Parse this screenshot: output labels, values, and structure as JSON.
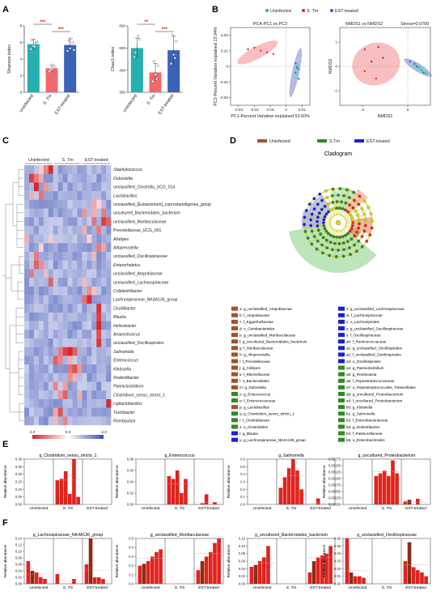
{
  "panels": {
    "A": "A",
    "B": "B",
    "C": "C",
    "D": "D",
    "E": "E",
    "F": "F"
  },
  "groups": [
    "Uninfected",
    "S. Tm",
    "EST-treated"
  ],
  "colors": {
    "uninfected": "#25b0b0",
    "stm": "#f06a6a",
    "est": "#3a63b8",
    "bar_red": "#e0231e",
    "bar_dark": "#8c2b14",
    "clado_uninf": "#a0522d",
    "clado_stm": "#2e8b22",
    "clado_est": "#1f1fd0",
    "heat_hi": "#d6262b",
    "heat_lo": "#3a4fb5"
  },
  "panelA": {
    "charts": [
      {
        "type": "bar",
        "ylabel": "Shannon index",
        "categories": [
          "Uninfected",
          "S. Tm",
          "EST-treated"
        ],
        "values": [
          5.8,
          2.9,
          5.7
        ],
        "errors": [
          0.6,
          0.4,
          0.8
        ],
        "points": [
          [
            5.2,
            5.6,
            6.0,
            6.3,
            5.5,
            6.1
          ],
          [
            2.5,
            2.8,
            3.1,
            2.7,
            3.3
          ],
          [
            5.0,
            5.3,
            6.0,
            6.2,
            6.5,
            5.1
          ]
        ],
        "ylim": [
          0,
          8
        ],
        "yticks": [
          "0",
          "2",
          "4",
          "6",
          "8"
        ],
        "sig": [
          {
            "from": 0,
            "to": 1,
            "label": "***"
          },
          {
            "from": 1,
            "to": 2,
            "label": "***"
          }
        ]
      },
      {
        "type": "bar",
        "ylabel": "Chao1 index",
        "categories": [
          "Uninfected",
          "S. Tm",
          "EST-treated"
        ],
        "values": [
          500,
          390,
          490
        ],
        "errors": [
          45,
          40,
          65
        ],
        "points": [
          [
            460,
            510,
            540,
            480,
            555
          ],
          [
            350,
            380,
            420,
            440,
            360
          ],
          [
            430,
            470,
            530,
            560,
            455
          ]
        ],
        "ylim": [
          300,
          600
        ],
        "yticks": [
          "300",
          "400",
          "500",
          "600"
        ],
        "sig": [
          {
            "from": 0,
            "to": 1,
            "label": "**"
          },
          {
            "from": 1,
            "to": 2,
            "label": "***"
          }
        ]
      }
    ]
  },
  "panelB": {
    "legend": [
      "Uninfected",
      "S. Tm",
      "EST-treated"
    ],
    "pca": {
      "title": "PCA-PC1 vs PC2",
      "xlabel": "PC1-Percent Variation explained 53.60%",
      "ylabel": "PC2-Percent Variation explained 13.94%",
      "xticks": [
        "-0.03",
        "-0.02",
        "-0.01",
        "0",
        "0.01"
      ],
      "yticks": [
        "-0.02",
        "-0.01",
        "0",
        "0.01",
        "0.02"
      ]
    },
    "nmds": {
      "title": "NMDS1 vs NMDS2",
      "stress": "Stress=0.0700",
      "xlabel": "NMDS1",
      "ylabel": "NMDS2",
      "xticks": [
        "-2",
        "0"
      ],
      "yticks": [
        "-1",
        "0",
        "1"
      ]
    }
  },
  "panelC": {
    "column_groups": [
      "Uninfected",
      "S. Tm",
      "EST-treated"
    ],
    "rows": [
      "Staphylococcus",
      "Dubosiella",
      "unclassified_Clostridia_UCG_014",
      "Lactobacillus",
      "unclassified_[Eubacterium]_coprostanoligenes_group",
      "uncultured_Bacteroidales_bacterium",
      "unclassified_Muribaculaceae",
      "Prevotellaceae_UCG_001",
      "Alistipes",
      "Alloprevotella",
      "unclassified_Oscillospiraceae",
      "Enterorhabdus",
      "unclassified_Atopobiaceae",
      "unclassified_Lachnospiraceae",
      "Colidextribacter",
      "Lachnospiraceae_NK4A136_group",
      "Oscillibacter",
      "Blautia",
      "Helicobacter",
      "Anaerotruncus",
      "unclassified_Oscillospirales",
      "Salmonella",
      "Enterococcus",
      "Klebsiella",
      "Rodentibacter",
      "Paeniclostridium",
      "Clostridium_sensu_stricto_1",
      "Ligilactobacillus",
      "Turicibacter",
      "Romboutsia"
    ],
    "italic_rows": [
      "Staphylococcus",
      "Dubosiella",
      "Lactobacillus",
      "Alistipes",
      "Alloprevotella",
      "Enterorhabdus",
      "Colidextribacter",
      "Oscillibacter",
      "Blautia",
      "Helicobacter",
      "Anaerotruncus",
      "Salmonella",
      "Enterococcus",
      "Klebsiella",
      "Rodentibacter",
      "Paeniclostridium",
      "Ligilactobacillus",
      "Turicibacter",
      "Romboutsia"
    ],
    "scale_labels": [
      "2.0",
      "0.0",
      "-2.0"
    ]
  },
  "panelD": {
    "legend": [
      "Uninfected",
      "S.Tm",
      "EST-treated"
    ],
    "title": "Cladogram",
    "taxa_left": [
      {
        "k": "a",
        "t": "g_unclassified_Atopobiaceae",
        "c": "u"
      },
      {
        "k": "b",
        "t": "f_Atopobiaceae",
        "c": "u"
      },
      {
        "k": "c",
        "t": "f_Eggerthellaceae",
        "c": "u"
      },
      {
        "k": "d",
        "t": "o_Coriobacteriales",
        "c": "u"
      },
      {
        "k": "e",
        "t": "g_unclassified_Muribaculaceae",
        "c": "u"
      },
      {
        "k": "f",
        "t": "g_uncultured_Bacteroidales_bacterium",
        "c": "u"
      },
      {
        "k": "g",
        "t": "f_Muribaculaceae",
        "c": "u"
      },
      {
        "k": "h",
        "t": "g_Alloprevotella",
        "c": "u"
      },
      {
        "k": "i",
        "t": "f_Prevotellaceae",
        "c": "u"
      },
      {
        "k": "j",
        "t": "g_Alistipes",
        "c": "u"
      },
      {
        "k": "k",
        "t": "f_Rikenellaceae",
        "c": "u"
      },
      {
        "k": "l",
        "t": "o_Bacteroidales",
        "c": "u"
      },
      {
        "k": "m",
        "t": "g_Dubosiella",
        "c": "u"
      },
      {
        "k": "n",
        "t": "g_Enterococcus",
        "c": "s"
      },
      {
        "k": "o",
        "t": "f_Enterococcaceae",
        "c": "s"
      },
      {
        "k": "p",
        "t": "g_Lactobacillus",
        "c": "u"
      },
      {
        "k": "q",
        "t": "g_Clostridium_sensu_stricto_1",
        "c": "s"
      },
      {
        "k": "r",
        "t": "f_Clostridiaceae",
        "c": "s"
      },
      {
        "k": "s",
        "t": "o_Clostridiales",
        "c": "s"
      },
      {
        "k": "t",
        "t": "g_Blautia",
        "c": "e"
      },
      {
        "k": "u",
        "t": "g_Lachnospiraceae_NK4A136_group",
        "c": "e"
      }
    ],
    "taxa_right": [
      {
        "k": "v",
        "t": "g_unclassified_Lachnospiraceae",
        "c": "e"
      },
      {
        "k": "w",
        "t": "f_Lachnospiraceae",
        "c": "e"
      },
      {
        "k": "x",
        "t": "o_Lachnospirales",
        "c": "e"
      },
      {
        "k": "y",
        "t": "g_unclassified_Oscillospiraceae",
        "c": "e"
      },
      {
        "k": "z",
        "t": "f_Oscillospiraceae",
        "c": "e"
      },
      {
        "k": "a0",
        "t": "f_Ruminococcaceae",
        "c": "e"
      },
      {
        "k": "a1",
        "t": "g_unclassified_Oscillospirales",
        "c": "e"
      },
      {
        "k": "a2",
        "t": "f_unclassified_Oscillospirales",
        "c": "e"
      },
      {
        "k": "a3",
        "t": "o_Oscillospirales",
        "c": "e"
      },
      {
        "k": "a4",
        "t": "g_Paeniclostridium",
        "c": "s"
      },
      {
        "k": "a5",
        "t": "g_Romboutsia",
        "c": "s"
      },
      {
        "k": "a6",
        "t": "f_Peptostreptococcaceae",
        "c": "s"
      },
      {
        "k": "a7",
        "t": "o_Peptostreptococcales_Tissierellales",
        "c": "s"
      },
      {
        "k": "a8",
        "t": "g_uncultured_Proteobacterium",
        "c": "s"
      },
      {
        "k": "a9",
        "t": "f_uncultured_Proteobacterium",
        "c": "s"
      },
      {
        "k": "b0",
        "t": "g_Klebsiella",
        "c": "s"
      },
      {
        "k": "b1",
        "t": "g_Salmonella",
        "c": "s"
      },
      {
        "k": "b2",
        "t": "f_Enterobacteriaceae",
        "c": "s"
      },
      {
        "k": "b3",
        "t": "g_Rodentibacter",
        "c": "s"
      },
      {
        "k": "b4",
        "t": "f_Pasteurellaceae",
        "c": "s"
      },
      {
        "k": "b5",
        "t": "o_Enterobacterales",
        "c": "s"
      }
    ]
  },
  "panelE": [
    {
      "title": "g_Clostridium_sensu_stricto_1",
      "yticks": [
        "0.00",
        "0.05",
        "0.10",
        "0.15",
        "0.20",
        "0.25",
        "0.30"
      ],
      "ymax": 0.3,
      "values": [
        0.0,
        0.0,
        0.0,
        0.0,
        0.0,
        0.0,
        0.16,
        0.17,
        0.22,
        0.07,
        0.3,
        0.05,
        0.0,
        0.0,
        0.0,
        0.0,
        0.0,
        0.0
      ]
    },
    {
      "title": "g_Enterococcus",
      "yticks": [
        "0.00",
        "0.02",
        "0.04",
        "0.06",
        "0.08"
      ],
      "ymax": 0.08,
      "values": [
        0.0,
        0.0,
        0.0,
        0.0,
        0.0,
        0.0,
        0.05,
        0.045,
        0.06,
        0.02,
        0.045,
        0.0,
        0.0,
        0.002,
        0.018,
        0.0,
        0.004,
        0.0
      ]
    },
    {
      "title": "g_Salmonella",
      "yticks": [
        "0.0",
        "0.1",
        "0.2",
        "0.3",
        "0.4",
        "0.5",
        "0.6"
      ],
      "ymax": 0.6,
      "values": [
        0.0,
        0.0,
        0.0,
        0.0,
        0.0,
        0.0,
        0.22,
        0.36,
        0.48,
        0.6,
        0.45,
        0.2,
        0.0,
        0.0,
        0.08,
        0.0,
        0.0,
        0.0
      ]
    },
    {
      "title": "g_uncultured_Proteobacterium",
      "yticks": [
        "0.00000",
        "0.00025",
        "0.00050",
        "0.00075",
        "0.00100",
        "0.00125",
        "0.00150",
        "0.00175"
      ],
      "ymax": 0.00175,
      "values": [
        0.0,
        0.0,
        0.0,
        0.0,
        0.0,
        0.0,
        0.0011,
        0.0012,
        0.0013,
        0.0011,
        0.0017,
        0.0012,
        0.00012,
        0.00018,
        0.0,
        0.00022,
        0.0,
        0.0
      ]
    }
  ],
  "panelF": [
    {
      "title": "g_Lachnospiraceae_NK4A136_group",
      "yticks": [
        "0.00",
        "0.02",
        "0.04",
        "0.06",
        "0.08",
        "0.10",
        "0.12",
        "0.14"
      ],
      "ymax": 0.14,
      "values": [
        0.07,
        0.04,
        0.035,
        0.02,
        0.015,
        0.0,
        0.03,
        0.0,
        0.0,
        0.0,
        0.015,
        0.0,
        0.06,
        0.14,
        0.02,
        0.02,
        0.015,
        0.0
      ]
    },
    {
      "title": "g_unclassified_Muribaculaceae",
      "yticks": [
        "0.0",
        "0.1",
        "0.2",
        "0.3",
        "0.4",
        "0.5"
      ],
      "ymax": 0.5,
      "values": [
        0.2,
        0.22,
        0.25,
        0.3,
        0.35,
        0.38,
        0.0,
        0.0,
        0.0,
        0.0,
        0.0,
        0.0,
        0.15,
        0.25,
        0.3,
        0.35,
        0.45,
        0.5
      ]
    },
    {
      "title": "g_uncultured_Bacteroidales_bacterium",
      "yticks": [
        "0.00",
        "0.02",
        "0.04",
        "0.06",
        "0.08",
        "0.10",
        "0.12"
      ],
      "ymax": 0.12,
      "values": [
        0.045,
        0.05,
        0.06,
        0.07,
        0.1,
        0.0,
        0.0,
        0.0,
        0.0,
        0.0,
        0.0,
        0.0,
        0.03,
        0.06,
        0.07,
        0.075,
        0.08,
        0.1
      ]
    },
    {
      "title": "g_unclassified_Oscillospiraceae",
      "yticks": [
        "0.00",
        "0.01",
        "0.02",
        "0.03",
        "0.04",
        "0.05",
        "0.06"
      ],
      "ymax": 0.06,
      "values": [
        0.06,
        0.015,
        0.01,
        0.01,
        0.008,
        0.0,
        0.0,
        0.0,
        0.0,
        0.0,
        0.0,
        0.0,
        0.03,
        0.055,
        0.022,
        0.018,
        0.015,
        0.01
      ]
    }
  ],
  "bar_axis": {
    "ylabel": "Relative abundance",
    "groups": [
      "Uninfected",
      "S. Tm",
      "EST-treated"
    ]
  }
}
